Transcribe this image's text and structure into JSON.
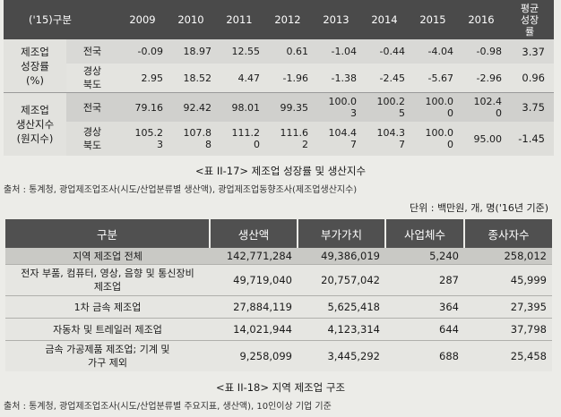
{
  "table1": {
    "header": {
      "label": "('15)구분",
      "years": [
        "2009",
        "2010",
        "2011",
        "2012",
        "2013",
        "2014",
        "2015",
        "2016"
      ],
      "avg": [
        "평균",
        "성장",
        "률"
      ]
    },
    "groups": [
      {
        "name": [
          "제조업",
          "성장률",
          "(%)"
        ],
        "rows": [
          {
            "region": [
              "전국"
            ],
            "values": [
              [
                "-0.09"
              ],
              [
                "18.97"
              ],
              [
                "12.55"
              ],
              [
                "0.61"
              ],
              [
                "-1.04"
              ],
              [
                "-0.44"
              ],
              [
                "-4.04"
              ],
              [
                "-0.98"
              ]
            ],
            "avg": "3.37"
          },
          {
            "region": [
              "경상",
              "북도"
            ],
            "values": [
              [
                "2.95"
              ],
              [
                "18.52"
              ],
              [
                "4.47"
              ],
              [
                "-1.96"
              ],
              [
                "-1.38"
              ],
              [
                "-2.45"
              ],
              [
                "-5.67"
              ],
              [
                "-2.96"
              ]
            ],
            "avg": "0.96"
          }
        ]
      },
      {
        "name": [
          "제조업",
          "생산지수",
          "(원지수)"
        ],
        "rows": [
          {
            "region": [
              "전국"
            ],
            "values": [
              [
                "79.16"
              ],
              [
                "92.42"
              ],
              [
                "98.01"
              ],
              [
                "99.35"
              ],
              [
                "100.0",
                "3"
              ],
              [
                "100.2",
                "5"
              ],
              [
                "100.0",
                "0"
              ],
              [
                "102.4",
                "0"
              ]
            ],
            "avg": "3.75"
          },
          {
            "region": [
              "경상",
              "북도"
            ],
            "values": [
              [
                "105.2",
                "3"
              ],
              [
                "107.8",
                "8"
              ],
              [
                "111.2",
                "0"
              ],
              [
                "111.6",
                "2"
              ],
              [
                "104.4",
                "7"
              ],
              [
                "104.3",
                "7"
              ],
              [
                "100.0",
                "0"
              ],
              [
                "95.00"
              ]
            ],
            "avg": "-1.45"
          }
        ]
      }
    ],
    "caption": "<표 II-17> 제조업 성장률 및 생산지수",
    "source": "출처 : 통계청, 광업제조업조사(시도/산업분류별 생산액), 광업제조업동향조사(제조업생산지수)"
  },
  "unit": "단위 : 백만원, 개, 명('16년 기준)",
  "table2": {
    "headers": [
      "구분",
      "생산액",
      "부가가치",
      "사업체수",
      "종사자수"
    ],
    "total": {
      "name": [
        "지역 제조업 전체"
      ],
      "values": [
        "142,771,284",
        "49,386,019",
        "5,240",
        "258,012"
      ]
    },
    "rows": [
      {
        "name": [
          "전자 부품, 컴퓨터, 영상, 음향 및 통신장비",
          "제조업"
        ],
        "values": [
          "49,719,040",
          "20,757,042",
          "287",
          "45,999"
        ]
      },
      {
        "name": [
          "1차 금속 제조업"
        ],
        "values": [
          "27,884,119",
          "5,625,418",
          "364",
          "27,395"
        ]
      },
      {
        "name": [
          "자동차 및 트레일러 제조업"
        ],
        "values": [
          "14,021,944",
          "4,123,314",
          "644",
          "37,798"
        ]
      },
      {
        "name": [
          "금속 가공제품 제조업; 기계 및",
          "가구 제외"
        ],
        "values": [
          "9,258,099",
          "3,445,292",
          "688",
          "25,458"
        ]
      }
    ],
    "caption": "<표 II-18> 지역 제조업 구조",
    "source": "출처 : 통계청, 광업제조업조사(시도/산업분류별 주요지표, 생산액), 10인이상 기업 기준"
  }
}
